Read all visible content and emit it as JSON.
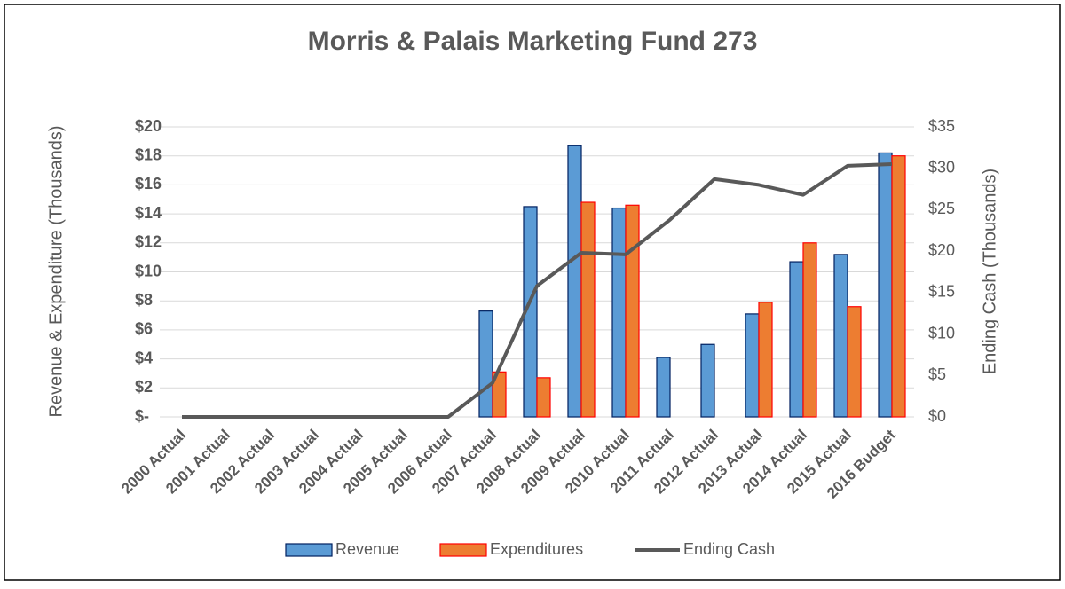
{
  "chart_data": {
    "type": "bar",
    "title": "Morris & Palais Marketing Fund 273",
    "y_label": "Revenue & Expenditure (Thousands)",
    "y2_label": "Ending Cash (Thousands)",
    "categories": [
      "2000 Actual",
      "2001 Actual",
      "2002 Actual",
      "2003 Actual",
      "2004 Actual",
      "2005 Actual",
      "2006 Actual",
      "2007 Actual",
      "2008 Actual",
      "2009 Actual",
      "2010 Actual",
      "2011 Actual",
      "2012 Actual",
      "2013 Actual",
      "2014 Actual",
      "2015 Actual",
      "2016 Budget"
    ],
    "series": [
      {
        "name": "Revenue",
        "color": "#5b9bd5",
        "edge": "#002060",
        "values": [
          0,
          0,
          0,
          0,
          0,
          0,
          0,
          7.3,
          14.5,
          18.7,
          14.4,
          4.1,
          5.0,
          7.1,
          10.7,
          11.2,
          18.2
        ]
      },
      {
        "name": "Expenditures",
        "color": "#ed7d31",
        "edge": "#ff0000",
        "values": [
          0,
          0,
          0,
          0,
          0,
          0,
          0,
          3.1,
          2.7,
          14.8,
          14.6,
          0,
          0,
          7.9,
          12.0,
          7.6,
          18.0
        ]
      },
      {
        "name": "Ending Cash",
        "color": "#595959",
        "type": "line",
        "axis": "y2",
        "values": [
          0,
          0,
          0,
          0,
          0,
          0,
          0,
          4.1,
          15.8,
          19.8,
          19.6,
          23.8,
          28.7,
          28.0,
          26.8,
          30.3,
          30.5
        ]
      }
    ],
    "ylim": [
      0,
      20
    ],
    "yticks": [
      {
        "value": 0,
        "label": "$-"
      },
      {
        "value": 2,
        "label": "$2"
      },
      {
        "value": 4,
        "label": "$4"
      },
      {
        "value": 6,
        "label": "$6"
      },
      {
        "value": 8,
        "label": "$8"
      },
      {
        "value": 10,
        "label": "$10"
      },
      {
        "value": 12,
        "label": "$12"
      },
      {
        "value": 14,
        "label": "$14"
      },
      {
        "value": 16,
        "label": "$16"
      },
      {
        "value": 18,
        "label": "$18"
      },
      {
        "value": 20,
        "label": "$20"
      }
    ],
    "y2lim": [
      0,
      35
    ],
    "y2ticks": [
      {
        "value": 0,
        "label": "$0"
      },
      {
        "value": 5,
        "label": "$5"
      },
      {
        "value": 10,
        "label": "$10"
      },
      {
        "value": 15,
        "label": "$15"
      },
      {
        "value": 20,
        "label": "$20"
      },
      {
        "value": 25,
        "label": "$25"
      },
      {
        "value": 30,
        "label": "$30"
      },
      {
        "value": 35,
        "label": "$35"
      }
    ],
    "grid": true,
    "legend": "bottom"
  }
}
